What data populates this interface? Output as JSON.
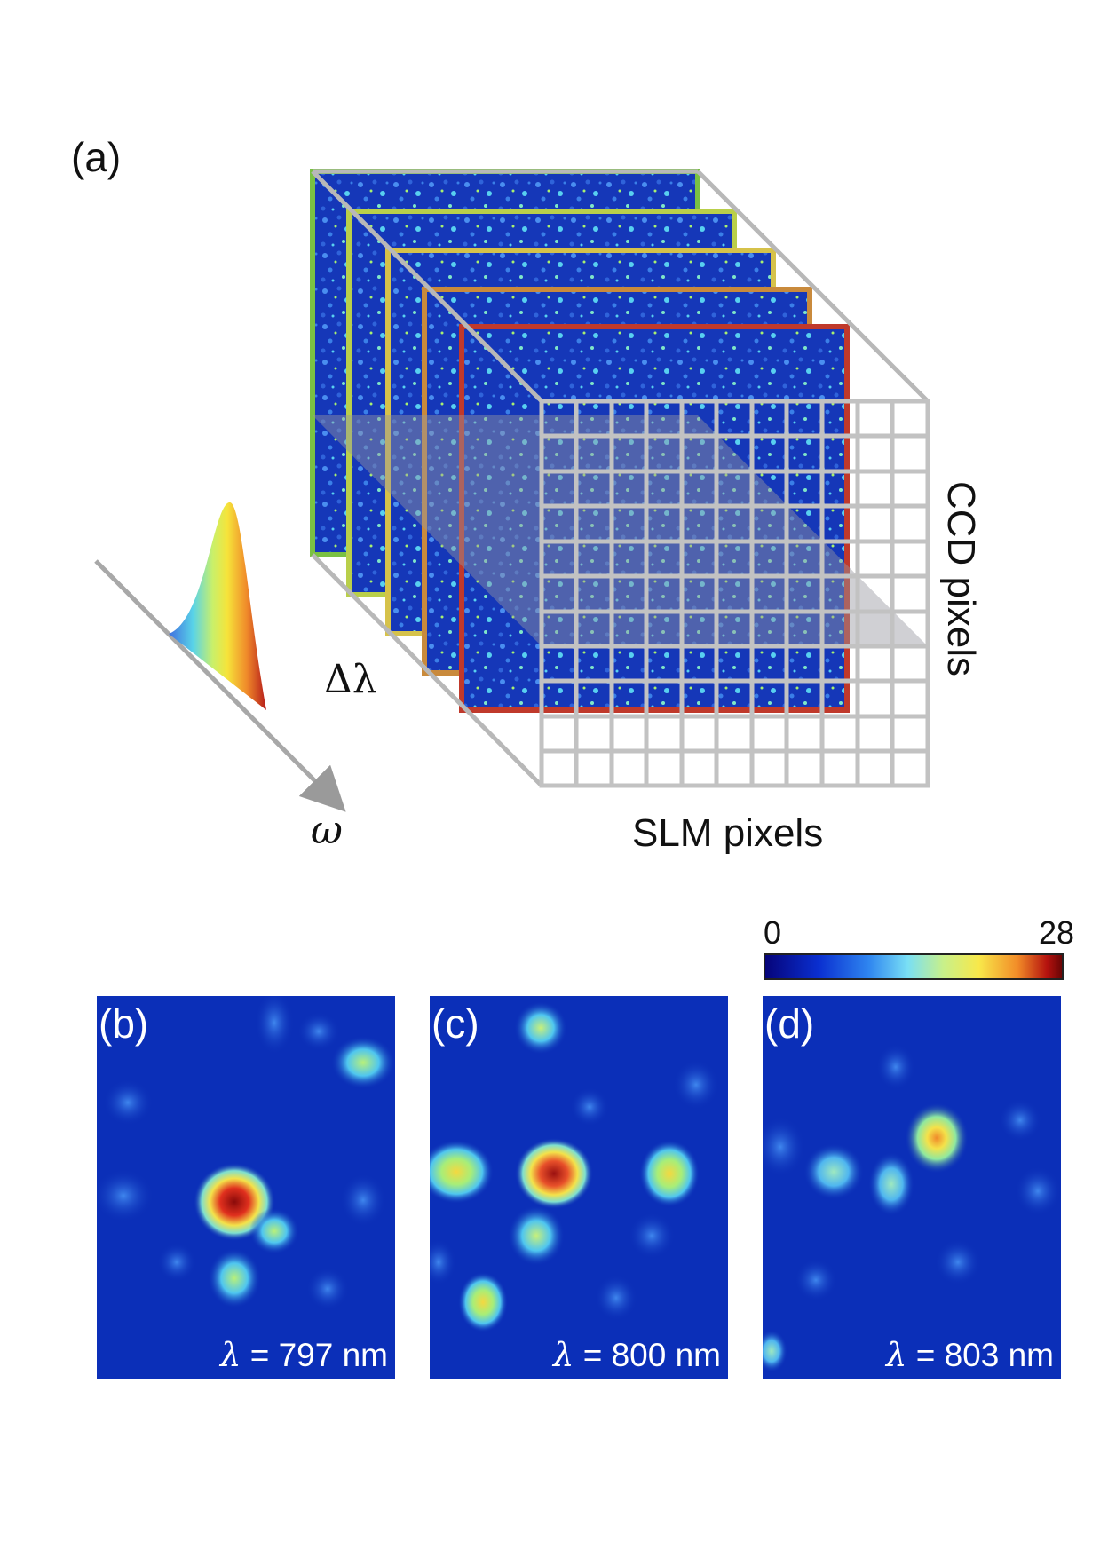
{
  "panel_a": {
    "label": "(a)",
    "delta_lambda_label": "Δλ",
    "omega_label": "ω",
    "ccd_axis_label": "CCD pixels",
    "slm_axis_label": "SLM pixels",
    "frame_colors": [
      "#7ac143",
      "#b9cf4a",
      "#d6c24a",
      "#c98a3c",
      "#c0392b"
    ]
  },
  "colorbar": {
    "min_label": "0",
    "max_label": "28"
  },
  "panels": [
    {
      "label": "(b)",
      "lambda_symbol": "λ",
      "wavelength_text": "= 797 nm"
    },
    {
      "label": "(c)",
      "lambda_symbol": "λ",
      "wavelength_text": "= 800 nm"
    },
    {
      "label": "(d)",
      "lambda_symbol": "λ",
      "wavelength_text": "= 803 nm"
    }
  ]
}
